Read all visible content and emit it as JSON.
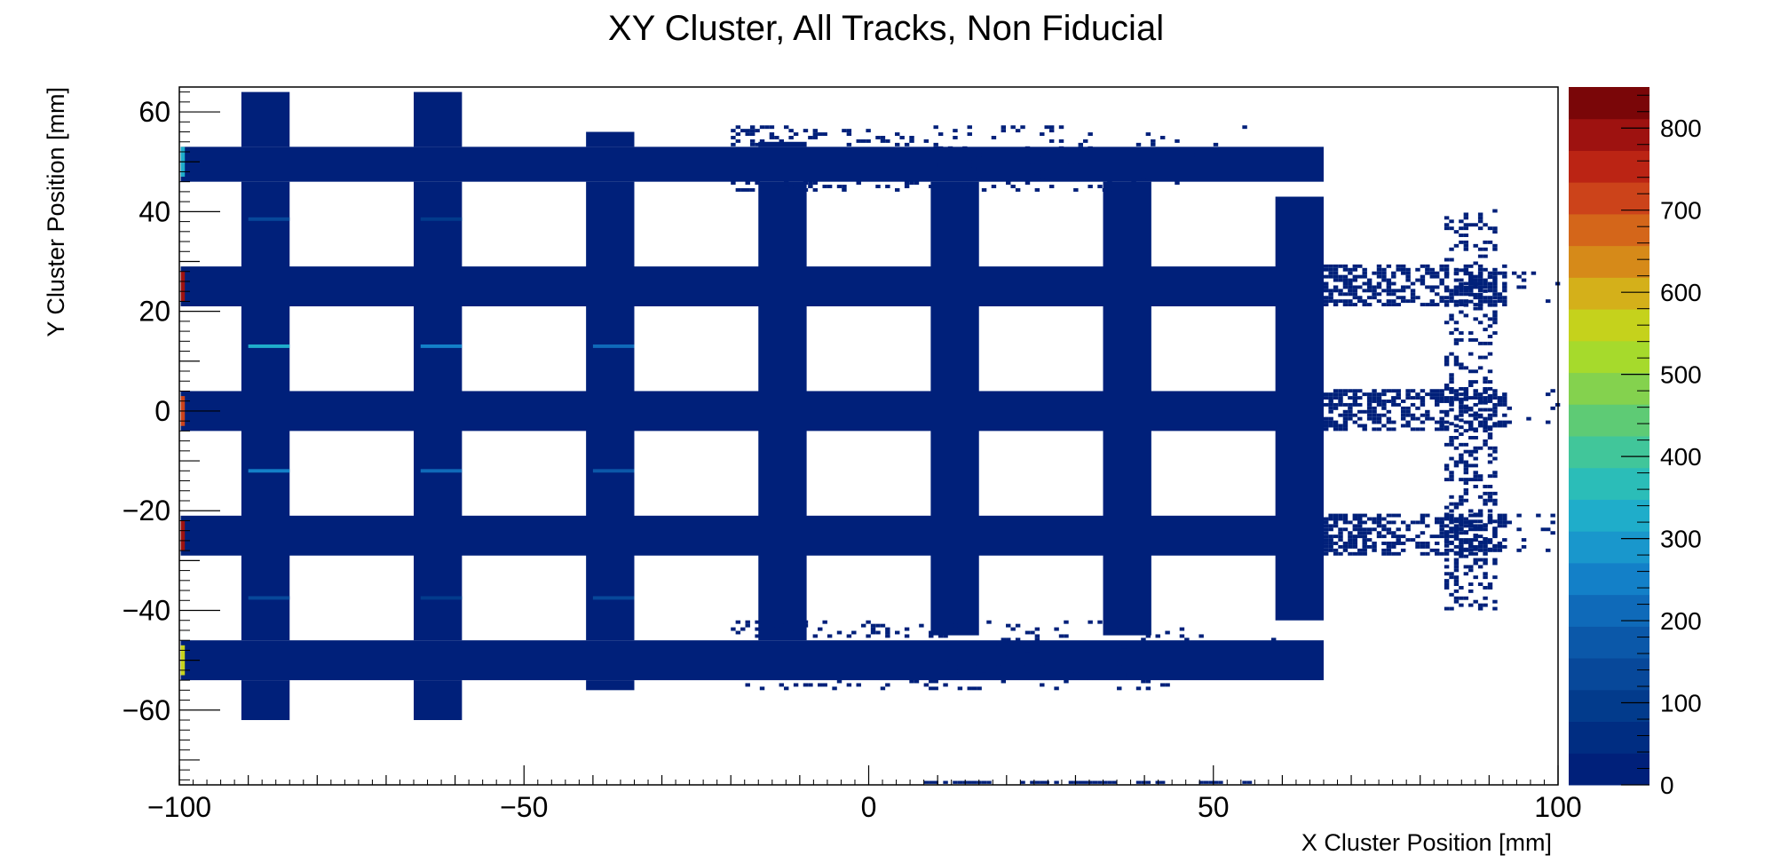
{
  "chart_data": {
    "type": "heatmap",
    "title": "XY Cluster, All Tracks, Non Fiducial",
    "xlabel": "X Cluster Position [mm]",
    "ylabel": "Y Cluster Position [mm]",
    "xlim": [
      -100,
      100
    ],
    "ylim": [
      -75,
      65
    ],
    "x_ticks": [
      -100,
      -50,
      0,
      50,
      100
    ],
    "y_ticks": [
      60,
      40,
      20,
      0,
      -20,
      -40,
      -60
    ],
    "z_range": [
      0,
      850
    ],
    "z_ticks": [
      0,
      100,
      200,
      300,
      400,
      500,
      600,
      700,
      800
    ],
    "palette": [
      "#00207a",
      "#002d82",
      "#023b8c",
      "#07489a",
      "#0b58a9",
      "#0f6ab9",
      "#1380c8",
      "#1997cc",
      "#1fadca",
      "#2bbdb8",
      "#41c69a",
      "#5ecb75",
      "#84d24e",
      "#a6da2c",
      "#c5d21c",
      "#d4b01a",
      "#d68a19",
      "#d4661a",
      "#cc431a",
      "#bb2414",
      "#9e1210",
      "#7a0608"
    ],
    "filled_bins": {
      "horizontal_bands_y": [
        [
          46,
          53
        ],
        [
          21,
          29
        ],
        [
          -4,
          4
        ],
        [
          -29,
          -21
        ],
        [
          -54,
          -46
        ]
      ],
      "vertical_bands_x": [
        [
          -91,
          -84
        ],
        [
          -66,
          -59
        ],
        [
          -41,
          -34
        ],
        [
          -16,
          -9
        ],
        [
          9,
          16
        ],
        [
          34,
          41
        ],
        [
          59,
          66
        ]
      ],
      "sparse_region_x": [
        66,
        90
      ],
      "background_value": 20
    },
    "hot_spots": [
      {
        "x": -87,
        "y": 38.5,
        "value": 120
      },
      {
        "x": -87,
        "y": 13,
        "value": 320
      },
      {
        "x": -87,
        "y": -12,
        "value": 260
      },
      {
        "x": -87,
        "y": -37.5,
        "value": 120
      },
      {
        "x": -62,
        "y": 38.5,
        "value": 100
      },
      {
        "x": -62,
        "y": 13,
        "value": 240
      },
      {
        "x": -62,
        "y": -12,
        "value": 220
      },
      {
        "x": -62,
        "y": -37.5,
        "value": 90
      },
      {
        "x": -37,
        "y": 13,
        "value": 200
      },
      {
        "x": -37,
        "y": -12,
        "value": 180
      },
      {
        "x": -37,
        "y": -37.5,
        "value": 130
      },
      {
        "x": -99.5,
        "y": 50,
        "value": 330
      },
      {
        "x": -99.5,
        "y": 25,
        "value": 800
      },
      {
        "x": -99.5,
        "y": 0,
        "value": 700
      },
      {
        "x": -99.5,
        "y": -25,
        "value": 780
      },
      {
        "x": -99.5,
        "y": -50,
        "value": 560
      }
    ]
  }
}
